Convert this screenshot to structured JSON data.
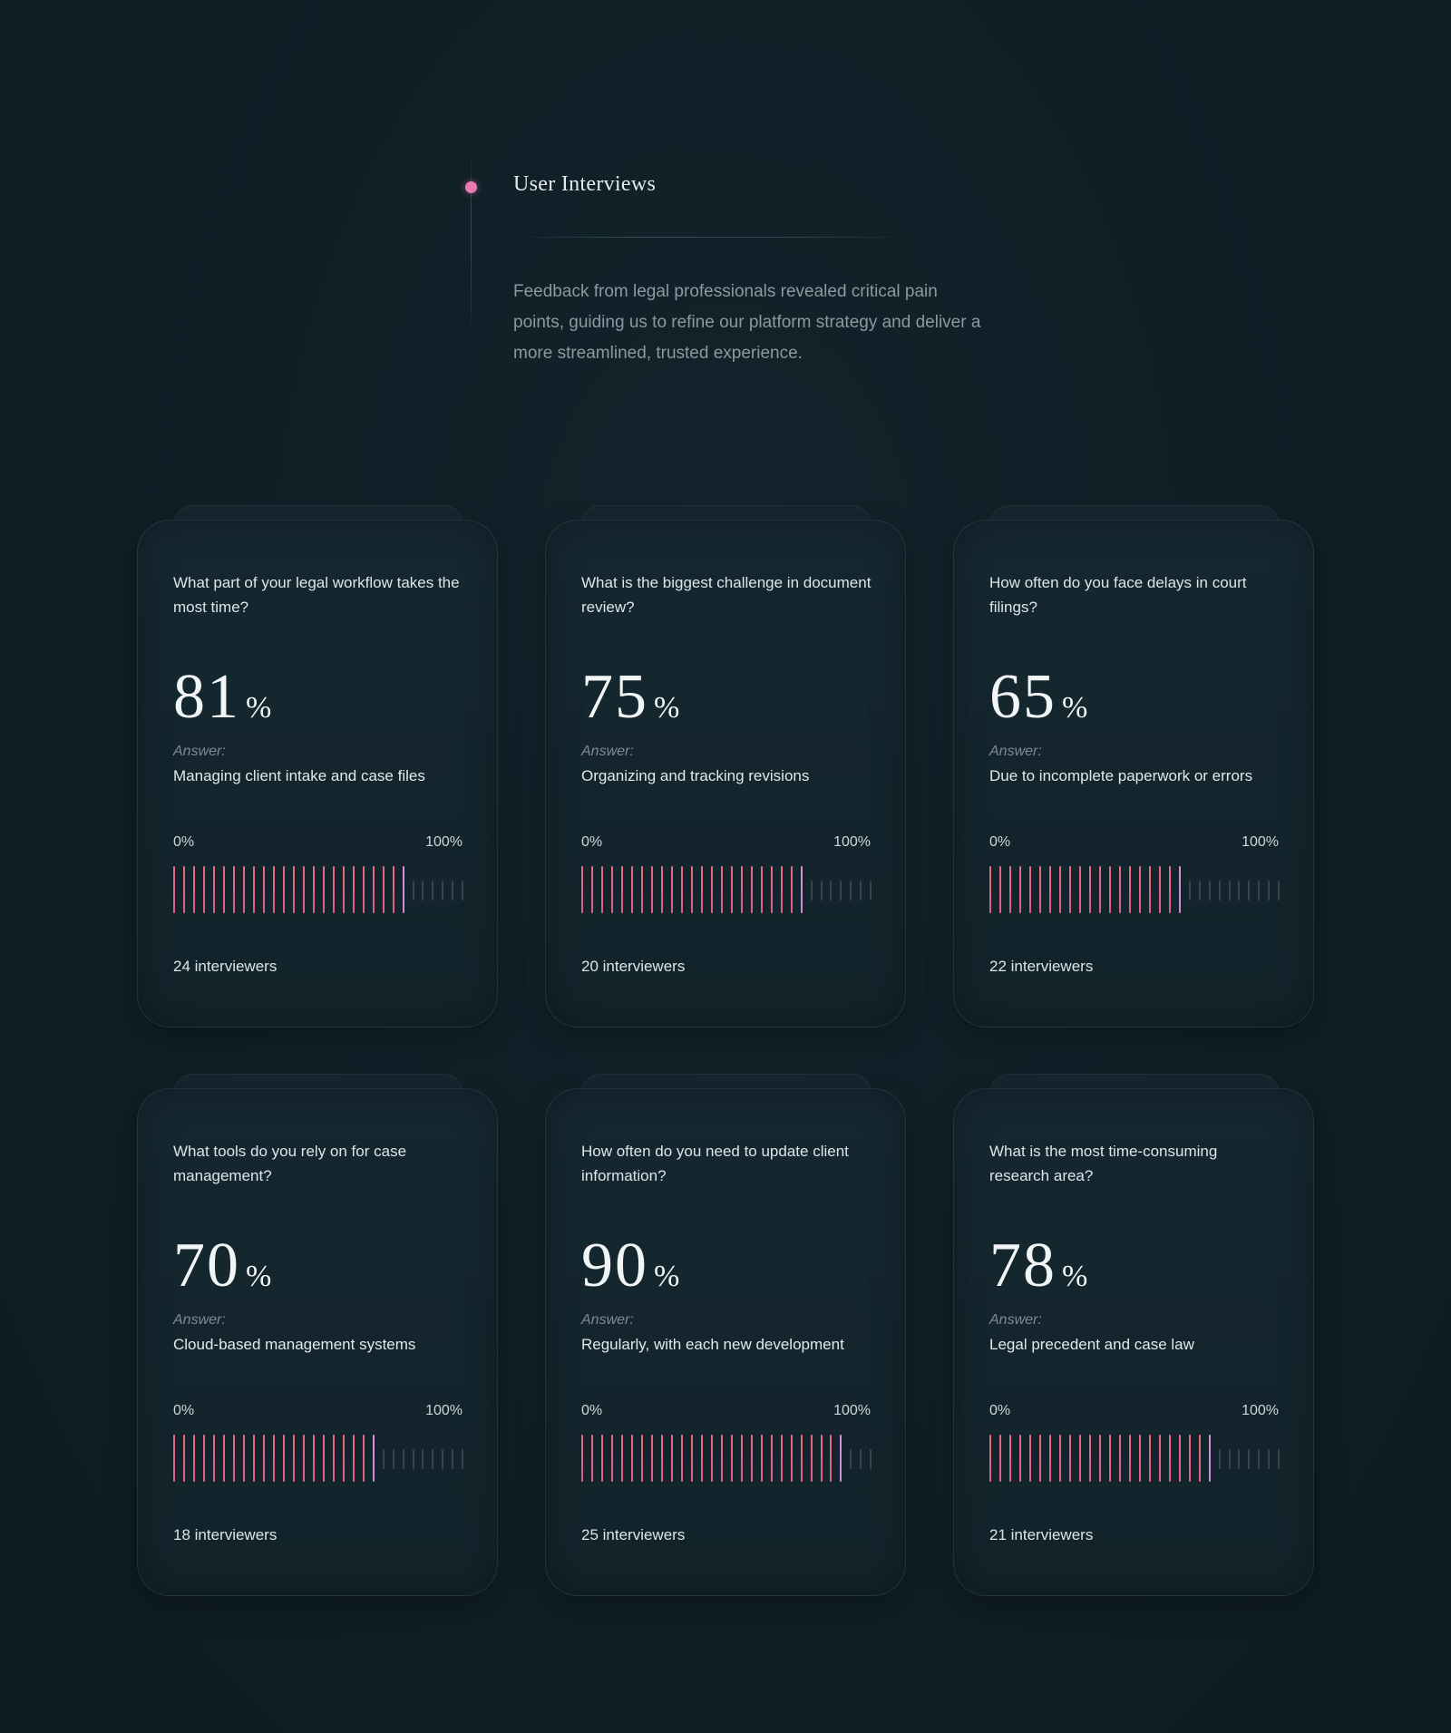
{
  "section": {
    "title": "User Interviews",
    "description": "Feedback from legal professionals revealed critical pain points, guiding us to refine our platform strategy and deliver a more streamlined, trusted experience.",
    "accent_color": "#e97bb2"
  },
  "scale": {
    "min_label": "0%",
    "max_label": "100%"
  },
  "answer_label": "Answer:",
  "cards": [
    {
      "question": "What part of your legal workflow takes the most time?",
      "percent": "81",
      "percent_sign": "%",
      "answer": "Managing client intake and case files",
      "interviewers": "24 interviewers",
      "fill": 0.81
    },
    {
      "question": "What is the biggest challenge in document review?",
      "percent": "75",
      "percent_sign": "%",
      "answer": "Organizing and tracking revisions",
      "interviewers": "20 interviewers",
      "fill": 0.75
    },
    {
      "question": "How often do you face delays in court filings?",
      "percent": "65",
      "percent_sign": "%",
      "answer": "Due to incomplete paperwork or errors",
      "interviewers": "22 interviewers",
      "fill": 0.65
    },
    {
      "question": "What tools do you rely on for case management?",
      "percent": "70",
      "percent_sign": "%",
      "answer": "Cloud-based management systems",
      "interviewers": "18 interviewers",
      "fill": 0.7
    },
    {
      "question": "How often do you need to update client information?",
      "percent": "90",
      "percent_sign": "%",
      "answer": "Regularly, with each new development",
      "interviewers": "25 interviewers",
      "fill": 0.9
    },
    {
      "question": "What is the most time-consuming research area?",
      "percent": "78",
      "percent_sign": "%",
      "answer": "Legal precedent and case law",
      "interviewers": "21 interviewers",
      "fill": 0.78
    }
  ]
}
